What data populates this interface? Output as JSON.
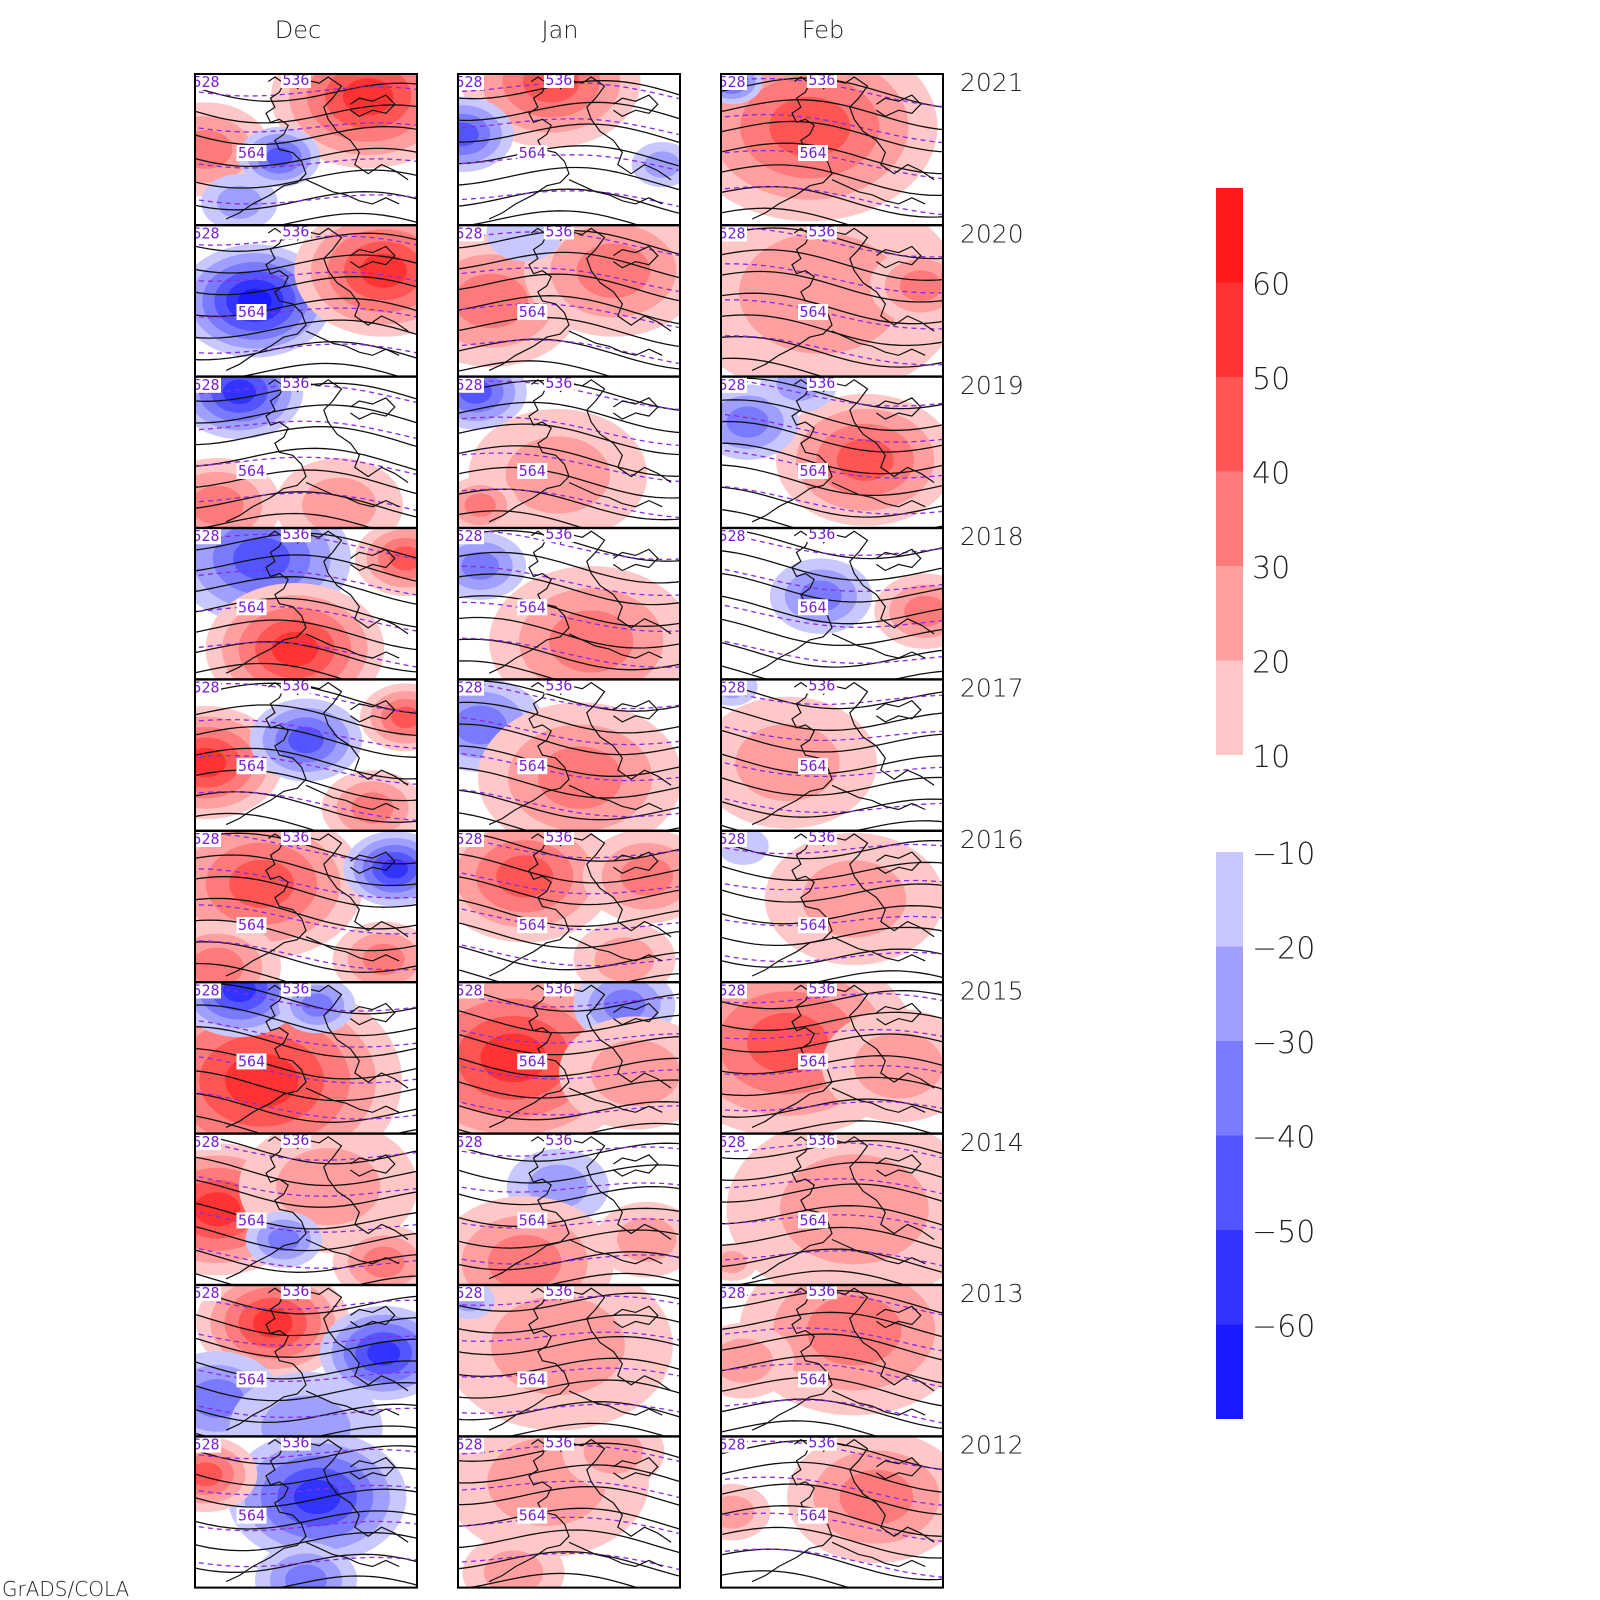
{
  "columns": [
    "Dec",
    "Jan",
    "Feb"
  ],
  "years": [
    "2021",
    "2020",
    "2019",
    "2018",
    "2017",
    "2016",
    "2015",
    "2014",
    "2013",
    "2012"
  ],
  "contour_labels": [
    "528",
    "536",
    "564"
  ],
  "colorbar_positive": {
    "levels": [
      "60",
      "50",
      "40",
      "30",
      "20",
      "10"
    ],
    "colors": [
      "#ff1a1a",
      "#ff3333",
      "#ff5555",
      "#ff7a7a",
      "#ff9f9f",
      "#ffc8c8"
    ]
  },
  "colorbar_negative": {
    "levels": [
      "-10",
      "-20",
      "-30",
      "-40",
      "-50",
      "-60"
    ],
    "colors": [
      "#c8c8ff",
      "#9f9fff",
      "#7a7aff",
      "#5555ff",
      "#3333ff",
      "#1a1aff"
    ]
  },
  "anomalies": {
    "2021": [
      [
        [
          0.78,
          0.15,
          0.38,
          50
        ],
        [
          0.05,
          0.5,
          0.25,
          30
        ],
        [
          0.38,
          0.55,
          0.16,
          -40
        ],
        [
          0.2,
          0.85,
          0.15,
          -20
        ]
      ],
      [
        [
          0.42,
          0.05,
          0.35,
          40
        ],
        [
          0.02,
          0.4,
          0.2,
          -40
        ],
        [
          0.92,
          0.6,
          0.12,
          -20
        ]
      ],
      [
        [
          0.4,
          0.35,
          0.5,
          45
        ],
        [
          0.05,
          0.05,
          0.12,
          -40
        ]
      ]
    ],
    "2020": [
      [
        [
          0.27,
          0.5,
          0.3,
          -60
        ],
        [
          0.85,
          0.3,
          0.35,
          50
        ]
      ],
      [
        [
          0.15,
          0.5,
          0.35,
          30
        ],
        [
          0.7,
          0.3,
          0.35,
          30
        ],
        [
          0.3,
          0.05,
          0.15,
          -15
        ]
      ],
      [
        [
          0.45,
          0.45,
          0.55,
          25
        ],
        [
          0.9,
          0.4,
          0.2,
          30
        ]
      ]
    ],
    "2019": [
      [
        [
          0.2,
          0.1,
          0.25,
          -50
        ],
        [
          0.1,
          0.85,
          0.25,
          35
        ],
        [
          0.65,
          0.85,
          0.25,
          25
        ]
      ],
      [
        [
          0.08,
          0.1,
          0.2,
          -40
        ],
        [
          0.45,
          0.65,
          0.35,
          20
        ],
        [
          0.1,
          0.85,
          0.15,
          30
        ]
      ],
      [
        [
          0.65,
          0.55,
          0.35,
          45
        ],
        [
          0.12,
          0.3,
          0.2,
          -30
        ],
        [
          0.35,
          0.05,
          0.15,
          -25
        ]
      ]
    ],
    "2018": [
      [
        [
          0.3,
          0.2,
          0.35,
          -45
        ],
        [
          0.45,
          0.8,
          0.35,
          50
        ],
        [
          0.95,
          0.2,
          0.2,
          45
        ]
      ],
      [
        [
          0.1,
          0.25,
          0.18,
          -30
        ],
        [
          0.6,
          0.75,
          0.4,
          30
        ]
      ],
      [
        [
          0.45,
          0.45,
          0.2,
          -30
        ],
        [
          0.92,
          0.55,
          0.2,
          35
        ]
      ]
    ],
    "2017": [
      [
        [
          0.05,
          0.55,
          0.3,
          50
        ],
        [
          0.5,
          0.4,
          0.22,
          -45
        ],
        [
          0.95,
          0.25,
          0.18,
          45
        ],
        [
          0.8,
          0.85,
          0.2,
          30
        ]
      ],
      [
        [
          0.1,
          0.3,
          0.25,
          -35
        ],
        [
          0.55,
          0.65,
          0.4,
          30
        ]
      ],
      [
        [
          0.3,
          0.55,
          0.35,
          25
        ],
        [
          0.05,
          0.05,
          0.1,
          -20
        ]
      ]
    ],
    "2016": [
      [
        [
          0.3,
          0.35,
          0.4,
          40
        ],
        [
          0.9,
          0.25,
          0.2,
          -50
        ],
        [
          0.1,
          0.9,
          0.25,
          35
        ],
        [
          0.85,
          0.85,
          0.2,
          35
        ]
      ],
      [
        [
          0.3,
          0.3,
          0.35,
          40
        ],
        [
          0.85,
          0.3,
          0.25,
          35
        ],
        [
          0.75,
          0.85,
          0.2,
          25
        ]
      ],
      [
        [
          0.6,
          0.45,
          0.35,
          25
        ],
        [
          0.1,
          0.1,
          0.1,
          -15
        ]
      ]
    ],
    "2015": [
      [
        [
          0.3,
          0.65,
          0.55,
          55
        ],
        [
          0.2,
          0.05,
          0.25,
          -55
        ],
        [
          0.55,
          0.15,
          0.15,
          -30
        ]
      ],
      [
        [
          0.25,
          0.5,
          0.5,
          55
        ],
        [
          0.75,
          0.15,
          0.2,
          -35
        ],
        [
          0.8,
          0.6,
          0.3,
          25
        ]
      ],
      [
        [
          0.3,
          0.4,
          0.5,
          40
        ],
        [
          0.8,
          0.55,
          0.3,
          25
        ]
      ]
    ],
    "2014": [
      [
        [
          0.1,
          0.5,
          0.35,
          50
        ],
        [
          0.6,
          0.35,
          0.35,
          25
        ],
        [
          0.4,
          0.7,
          0.15,
          -30
        ],
        [
          0.85,
          0.85,
          0.2,
          30
        ]
      ],
      [
        [
          0.45,
          0.35,
          0.2,
          -25
        ],
        [
          0.3,
          0.85,
          0.35,
          30
        ],
        [
          0.85,
          0.7,
          0.2,
          20
        ]
      ],
      [
        [
          0.6,
          0.5,
          0.5,
          25
        ],
        [
          0.05,
          0.85,
          0.1,
          20
        ]
      ]
    ],
    "2013": [
      [
        [
          0.35,
          0.25,
          0.3,
          50
        ],
        [
          0.85,
          0.45,
          0.25,
          -55
        ],
        [
          0.1,
          0.75,
          0.25,
          -35
        ],
        [
          0.5,
          0.95,
          0.3,
          -25
        ]
      ],
      [
        [
          0.45,
          0.4,
          0.45,
          25
        ],
        [
          0.05,
          0.1,
          0.1,
          -20
        ]
      ],
      [
        [
          0.6,
          0.3,
          0.45,
          30
        ],
        [
          0.1,
          0.5,
          0.2,
          20
        ]
      ]
    ],
    "2012": [
      [
        [
          0.55,
          0.4,
          0.35,
          -55
        ],
        [
          0.05,
          0.25,
          0.2,
          40
        ],
        [
          0.5,
          0.95,
          0.2,
          -30
        ]
      ],
      [
        [
          0.4,
          0.3,
          0.4,
          20
        ],
        [
          0.7,
          0.1,
          0.2,
          25
        ],
        [
          0.25,
          0.9,
          0.2,
          20
        ]
      ],
      [
        [
          0.7,
          0.4,
          0.35,
          30
        ],
        [
          0.05,
          0.5,
          0.15,
          25
        ]
      ]
    ]
  },
  "credit": "GrADS/COLA"
}
